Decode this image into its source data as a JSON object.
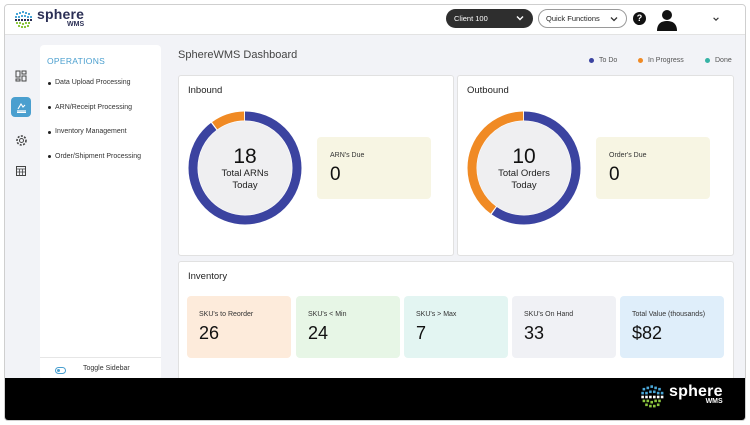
{
  "header": {
    "logo_name": "sphere",
    "logo_sub": "WMS",
    "client_select": "Client 100",
    "quick_functions": "Quick Functions",
    "help_label": "?"
  },
  "rail": {
    "icons": [
      "dashboard-icon",
      "upload-icon",
      "settings-icon",
      "calendar-icon"
    ],
    "active_index": 1
  },
  "sidebar": {
    "title": "OPERATIONS",
    "items": [
      {
        "label": "Data Upload Processing"
      },
      {
        "label": "ARN/Receipt Processing"
      },
      {
        "label": "Inventory Management"
      },
      {
        "label": "Order/Shipment Processing"
      }
    ],
    "toggle_label": "Toggle Sidebar"
  },
  "dashboard": {
    "title": "SphereWMS Dashboard",
    "legend": [
      {
        "label": "To Do",
        "color": "#3b43a0"
      },
      {
        "label": "In Progress",
        "color": "#f08a24"
      },
      {
        "label": "Done",
        "color": "#36b3a5"
      }
    ]
  },
  "inbound": {
    "title": "Inbound",
    "total_number": "18",
    "total_label_line1": "Total ARNs",
    "total_label_line2": "Today",
    "todo_fraction": 0.9,
    "inprogress_fraction": 0.1,
    "due_label": "ARN's Due",
    "due_value": "0"
  },
  "outbound": {
    "title": "Outbound",
    "total_number": "10",
    "total_label_line1": "Total Orders",
    "total_label_line2": "Today",
    "todo_fraction": 0.6,
    "inprogress_fraction": 0.4,
    "due_label": "Order's Due",
    "due_value": "0"
  },
  "inventory": {
    "title": "Inventory",
    "tiles": [
      {
        "label": "SKU's to Reorder",
        "value": "26",
        "bg": "#fdebdb"
      },
      {
        "label": "SKU's < Min",
        "value": "24",
        "bg": "#e7f6e6"
      },
      {
        "label": "SKU's > Max",
        "value": "7",
        "bg": "#e3f5f2"
      },
      {
        "label": "SKU's On Hand",
        "value": "33",
        "bg": "#f0f1f5"
      },
      {
        "label": "Total Value (thousands)",
        "value": "$82",
        "bg": "#dfeefa"
      }
    ]
  },
  "footer": {
    "logo_name": "sphere",
    "logo_sub": "WMS"
  }
}
